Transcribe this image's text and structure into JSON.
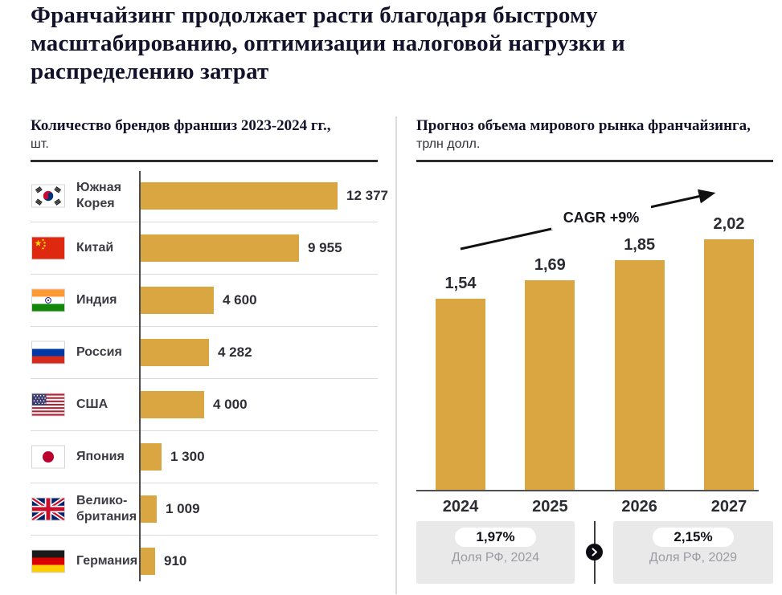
{
  "title_lines": [
    "Франчайзинг продолжает расти благодаря быстрому",
    "масштабированию, оптимизации налоговой нагрузки и",
    "распределению затрат"
  ],
  "left_panel": {
    "heading": "Количество брендов франшиз 2023-2024 гг.,",
    "unit": "шт."
  },
  "right_panel": {
    "heading": "Прогноз объема мирового рынка франчайзинга,",
    "unit": "трлн долл.",
    "annotation": "CAGR +9%"
  },
  "footer": {
    "left": {
      "value": "1,97%",
      "caption": "Доля РФ, 2024"
    },
    "right": {
      "value": "2,15%",
      "caption": "Доля РФ, 2029"
    },
    "arrow_icon": "chevron-right-icon"
  },
  "colors": {
    "bar_gold": "#D9A642",
    "dark_text": "#12122A",
    "muted_text": "#9B9BA2",
    "badge_bg": "#E9E9E9",
    "separator": "#DADADA",
    "axis": "#4C4C50"
  },
  "chart_data": [
    {
      "type": "bar",
      "orientation": "horizontal",
      "title": "Количество брендов франшиз 2023-2024 гг., шт.",
      "categories": [
        "Южная Корея",
        "Китай",
        "Индия",
        "Россия",
        "США",
        "Япония",
        "Великобритания",
        "Германия"
      ],
      "category_label_lines": [
        [
          "Южная",
          "Корея"
        ],
        [
          "Китай"
        ],
        [
          "Индия"
        ],
        [
          "Россия"
        ],
        [
          "США"
        ],
        [
          "Япония"
        ],
        [
          "Велико-",
          "британия"
        ],
        [
          "Германия"
        ]
      ],
      "flags": [
        "south-korea",
        "china",
        "india",
        "russia",
        "usa",
        "japan",
        "uk",
        "germany"
      ],
      "values": [
        12377,
        9955,
        4600,
        4282,
        4000,
        1300,
        1009,
        910
      ],
      "value_labels": [
        "12 377",
        "9 955",
        "4 600",
        "4 282",
        "4 000",
        "1 300",
        "1 009",
        "910"
      ],
      "xlim": [
        0,
        12377
      ],
      "bar_color": "#D9A642",
      "grid": "row-separators",
      "legend": "none"
    },
    {
      "type": "bar",
      "orientation": "vertical",
      "title": "Прогноз объема мирового рынка франчайзинга, трлн долл.",
      "categories": [
        "2024",
        "2025",
        "2026",
        "2027"
      ],
      "values": [
        1.54,
        1.69,
        1.85,
        2.02
      ],
      "value_labels": [
        "1,54",
        "1,69",
        "1,85",
        "2,02"
      ],
      "annotation": "CAGR +9%",
      "ylim": [
        0,
        2.2
      ],
      "bar_color": "#D9A642",
      "grid": "off",
      "legend": "none"
    }
  ]
}
